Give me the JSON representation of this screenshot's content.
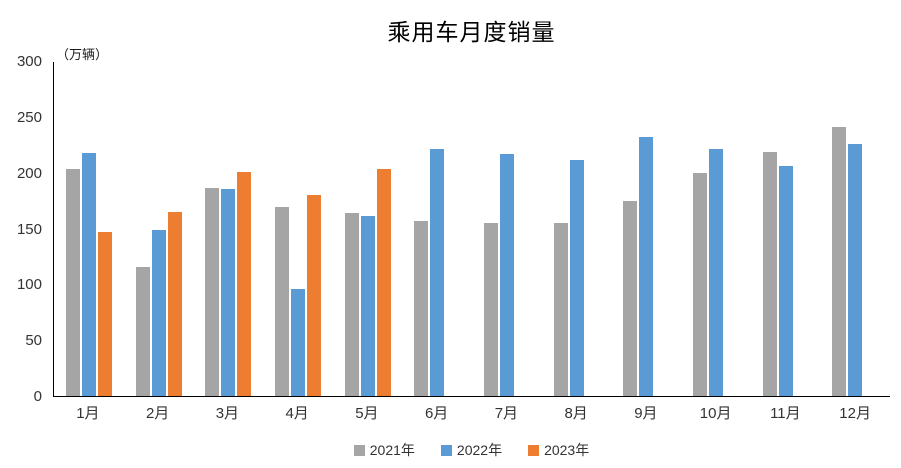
{
  "chart_data": {
    "type": "bar",
    "title": "乘用车月度销量",
    "y_unit_label": "（万辆）",
    "categories": [
      "1月",
      "2月",
      "3月",
      "4月",
      "5月",
      "6月",
      "7月",
      "8月",
      "9月",
      "10月",
      "11月",
      "12月"
    ],
    "series": [
      {
        "name": "2021年",
        "color": "#A5A5A5",
        "values": [
          204,
          116,
          187,
          170,
          164,
          157,
          155,
          155,
          175,
          200,
          219,
          242
        ]
      },
      {
        "name": "2022年",
        "color": "#5B9BD5",
        "values": [
          218,
          149,
          186,
          96,
          162,
          222,
          217,
          212,
          233,
          222,
          207,
          226
        ]
      },
      {
        "name": "2023年",
        "color": "#ED7D31",
        "values": [
          147,
          165,
          201,
          181,
          204,
          null,
          null,
          null,
          null,
          null,
          null,
          null
        ]
      }
    ],
    "ylim": [
      0,
      300
    ],
    "yticks": [
      0,
      50,
      100,
      150,
      200,
      250,
      300
    ],
    "grid": false,
    "legend_position": "bottom",
    "axis_color": "#000000",
    "background_color": "#FFFFFF"
  }
}
